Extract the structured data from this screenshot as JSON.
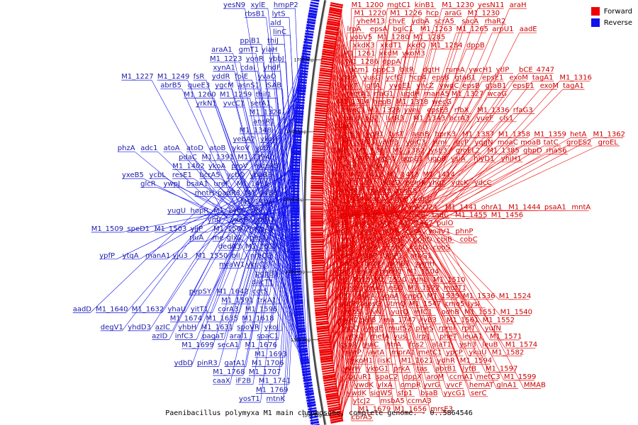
{
  "legend": {
    "forward_label": "Forward",
    "reverse_label": "Reverse",
    "forward_color": "#ee0000",
    "reverse_color": "#1111ee"
  },
  "caption": "Paenibacillus polymyxa M1 main chromosome, complete genome. - 0..5864546",
  "scale_labels": [
    "1200 kbp",
    "1300 kbp",
    "1400 kbp",
    "1500 kbp",
    "1600 kbp",
    "1700 kbp"
  ],
  "forward_labels": [
    [
      "M1_1200",
      "mgtC1",
      "kinB1",
      "M1_1230",
      "yesN11",
      "araH"
    ],
    [
      "M1_1220",
      "M1_1226",
      "hcp",
      "araG",
      "M1_1230"
    ],
    [
      "yheM13",
      "chvE",
      "ydbA",
      "scrA5",
      "sacA",
      "rhaR2"
    ],
    [
      "lrpA",
      "epsA",
      "bglC1",
      "M1_1263",
      "M1_1265",
      "arpU1",
      "aadE"
    ],
    [
      "yobV5",
      "M1_1280",
      "M1_1285"
    ],
    [
      "xkdK3",
      "xkdT1",
      "xkdQ",
      "M1_1284",
      "dppB"
    ],
    [
      "M1_1261",
      "xkdM",
      "ykoM3"
    ],
    [
      "M1_1286",
      "dppA"
    ],
    [
      "acm1",
      "oppC3",
      "bltR",
      "dgtH",
      "rumA",
      "ywcH1",
      "ytlP",
      "bCE_4747"
    ],
    [
      "yxeP",
      "yusG",
      "ycfG",
      "hcpA",
      "epsB",
      "gtaB1",
      "epsE1",
      "exoM",
      "tagA1",
      "M1_1316"
    ],
    [
      "ylxT",
      "glfA",
      "yvgE1",
      "yhcZ",
      "ywqC",
      "epsB",
      "gtaB1",
      "epsE1",
      "exoM",
      "tagA1"
    ],
    [
      "mgtA1",
      "rfaG1",
      "ugdH",
      "manA5",
      "M1_1327",
      "wcaG"
    ],
    [
      "M1_1314",
      "hepB",
      "M1_1318",
      "wecG"
    ],
    [
      "manC1",
      "M1_1328",
      "yveL",
      "epsE3",
      "rfbX",
      "M1_1336",
      "rfaG3"
    ],
    [
      "gmd",
      "lpg2",
      "lytR3",
      "M1_1343",
      "bcrA3",
      "yueF",
      "cls1"
    ],
    [
      "tuaD"
    ],
    [
      "bcrB3",
      "yqfU",
      "tysT",
      "asnB",
      "hprK3",
      "M1_1357",
      "M1_1358",
      "M1_1359",
      "hetA",
      "M1_1362"
    ],
    [
      "M1_1363",
      "ydiB3",
      "ydiC3",
      "rimI",
      "gcP",
      "yqgN",
      "moaC",
      "moaB",
      "tatC",
      "groES2",
      "groEL"
    ],
    [
      "tatB",
      "M1_1381",
      "M1_1382",
      "lysE3",
      "groEL2",
      "M1_1385",
      "gbpD",
      "rhaS6"
    ],
    [
      "M1_1392",
      "ugpA1",
      "ugpE1",
      "ugpB",
      "ysiA",
      "hlyD1",
      "yhiH1"
    ],
    [
      "yvbF",
      "pnbA"
    ],
    [
      "fhs",
      "M1_1412",
      "M1_1413",
      "M1_1414"
    ],
    [
      "yvgF3",
      "alr",
      "ydcD",
      "pemK",
      "yhgF",
      "ydcK",
      "ydcC"
    ],
    [
      "ansR2",
      "marR5",
      "ansR5"
    ],
    [
      "M1_1434",
      "kdpA",
      "kdpB",
      "kdpC"
    ],
    [
      "yuxK",
      "troC",
      "kdpD1",
      "mjecl24",
      "M1_1441",
      "ohrA1",
      "M1_1444",
      "psaA1",
      "mntA"
    ],
    [
      "myH9",
      "tadE",
      "cpaF",
      "tadB",
      "tadC",
      "M1_1455",
      "M1_1456"
    ],
    [
      "nfo1",
      "purU",
      "tktA",
      "M1_1467",
      "pulO"
    ],
    [
      "pglI",
      "yvyE",
      "mtrR",
      "cysA",
      "yoaV1",
      "phnP"
    ],
    [
      "yvrC",
      "fecD1",
      "fepC",
      "cobD",
      "cbiB",
      "cobC"
    ],
    [
      "bglP2",
      "rcbiP",
      "cobT",
      "cobU",
      "cobS"
    ],
    [
      "ydeC",
      "ydpP",
      "bglP1",
      "arbG1"
    ],
    [
      "recQ",
      "bchE",
      "pknB1",
      "ywnH"
    ],
    [
      "yqgT",
      "feuA",
      "phoB1",
      "M1_1504"
    ],
    [
      "M1_1518",
      "M1_1520",
      "ydhL",
      "M1_1510"
    ],
    [
      "yesY",
      "feuC",
      "eSD",
      "M1_1522",
      "mutT1"
    ],
    [
      "yfiT",
      "sucA",
      "yoaA",
      "cnpD",
      "M1_1535",
      "M1_1536",
      "M1_1524"
    ],
    [
      "yufP",
      "epsG",
      "ytmQ",
      "M1_1547",
      "cmo5",
      "lysI"
    ],
    [
      "atoS",
      "ilvN",
      "yurQ",
      "infC1",
      "odhB",
      "M1_1551",
      "M1_1540"
    ],
    [
      "myH2",
      "pelB",
      "ma_1747",
      "ilvB3",
      "M1_1561",
      "M1_1552"
    ],
    [
      "yjbQ",
      "yqqE",
      "mutS2",
      "pheS",
      "rpmI",
      "rplT",
      "yufN"
    ],
    [
      "ytxC",
      "metA",
      "yusI",
      "lrp1",
      "pheT",
      "leuA1",
      "M1_1571"
    ],
    [
      "cspR",
      "yuiC",
      "htrA",
      "fos2",
      "alaT1",
      "ysh3",
      "leuB",
      "M1_1574"
    ],
    [
      "narP",
      "avtA",
      "mprA1",
      "metC1",
      "ypcP",
      "ykuU",
      "M1_1582"
    ],
    [
      "ykoH1",
      "lisK",
      "M1_1621",
      "ydhR",
      "M1_1594"
    ],
    [
      "yvrH",
      "ykoG1",
      "prkA",
      "tas",
      "abrB1",
      "lytB",
      "M1_1597"
    ],
    [
      "puuR1",
      "spaC2",
      "dppX",
      "aroM",
      "ccmA1",
      "metC3",
      "M1_1599"
    ],
    [
      "ywdK",
      "ylxA",
      "ompR",
      "yvrG",
      "yvcF",
      "hemAT",
      "glnA1",
      "MMAB"
    ],
    [
      "ywdK",
      "sigW5",
      "sfp1",
      "bsaB",
      "yycG1",
      "serC"
    ],
    [
      "ytcJ2",
      "msbA5",
      "ccmA3"
    ],
    [
      "M1_1679",
      "M1_1656",
      "mrsE3"
    ],
    [
      "cbrA5"
    ]
  ],
  "reverse_labels": [
    [
      "yesN9",
      "xylE",
      "hmpP2"
    ],
    [
      "rbsB1",
      "lytS"
    ],
    [
      "ald"
    ],
    [
      "linC"
    ],
    [
      "ppiB1",
      "thiJ"
    ],
    [
      "araA1",
      "gmT1",
      "yiaH"
    ],
    [
      "M1_1223",
      "yonR",
      "ybbJ"
    ],
    [
      "xynA1",
      "cdaI",
      "yhdF"
    ],
    [
      "M1_1227",
      "M1_1249",
      "fsR",
      "yddR",
      "folE",
      "yvaO"
    ],
    [
      "abrB5",
      "queE3",
      "ygcM",
      "asnS1",
      "iSAB"
    ],
    [
      "M1_1260",
      "M1_1259",
      "thiI1"
    ],
    [
      "yrkN1",
      "yvcC1",
      "serA1"
    ],
    [
      "M1_1324"
    ],
    [
      "ansR1"
    ],
    [
      "M1_1348"
    ],
    [
      "yebA2",
      "ykoU"
    ],
    [
      "phzA",
      "adc1",
      "atoA",
      "atoD",
      "atoB",
      "ykoV",
      "ydiF"
    ],
    [
      "pdaC",
      "M1_1391",
      "M1_1394"
    ],
    [
      "M1_1402",
      "ykoA",
      "proV",
      "mcpA3"
    ],
    [
      "yxeB5",
      "ycbL",
      "resE1",
      "bcrA5",
      "ycbO",
      "ybbB3"
    ],
    [
      "glcR",
      "ywpJ",
      "bsaA1",
      "ureF",
      "M1_1431"
    ],
    [
      "mntH",
      "padR3",
      "M1_1438"
    ],
    [
      "M1_1446"
    ],
    [
      "yugU",
      "hopR",
      "M1_1466",
      "yfhF"
    ],
    [
      "yhfJ",
      "yxeH",
      "gntR7"
    ],
    [
      "M1_1509",
      "speD1",
      "M1_1503",
      "yjjP",
      "M1_1500",
      "mcpA5"
    ],
    [
      "rluA",
      "me",
      "glx2",
      "pepQ"
    ],
    [
      "dedA3",
      "M1_1517"
    ],
    [
      "ypfP",
      "ytqA",
      "manA1",
      "yju3",
      "M1_1550",
      "blI",
      "nreC3"
    ],
    [
      "mraW1",
      "ykuC3"
    ],
    [
      "pgpB1"
    ],
    [
      "dacT1"
    ],
    [
      "pepSY",
      "M1_1642",
      "cotS"
    ],
    [
      "M1_1591",
      "trkA1"
    ],
    [
      "aadD",
      "M1_1640",
      "M1_1632",
      "yhaU",
      "yitT1",
      "corA3",
      "M1_1596"
    ],
    [
      "M1_1674",
      "M1_1635",
      "M1_1618"
    ],
    [
      "degV1",
      "yhdD3",
      "azIC",
      "yhbH",
      "M1_1631",
      "spoVR",
      "ykoJ"
    ],
    [
      "azID",
      "infC3",
      "pagaT",
      "araI1",
      "spaC1"
    ],
    [
      "M1_1699",
      "secA1",
      "M1_1676"
    ],
    [
      "M1_1693"
    ],
    [
      "ydbD",
      "pinR3",
      "gatA1",
      "M1_1706"
    ],
    [
      "M1_1768",
      "M1_1707"
    ],
    [
      "caaX",
      "iF2B",
      "M1_1741"
    ],
    [
      "M1_1769"
    ],
    [
      "yosT1",
      "mtnK"
    ]
  ]
}
